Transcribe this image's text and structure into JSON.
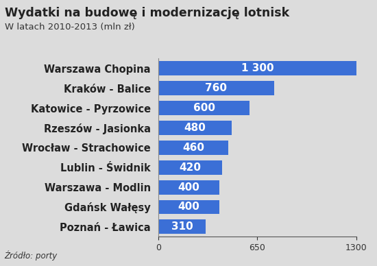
{
  "chart_data": {
    "type": "bar",
    "orientation": "horizontal",
    "title": "Wydatki na budowę i modernizację lotnisk",
    "subtitle": "W latach 2010-2013 (mln zł)",
    "source": "Źródło: porty",
    "categories": [
      "Warszawa Chopina",
      "Kraków - Balice",
      "Katowice - Pyrzowice",
      "Rzeszów - Jasionka",
      "Wrocław - Strachowice",
      "Lublin - Świdnik",
      "Warszawa - Modlin",
      "Gdańsk Wałęsy",
      "Poznań - Ławica"
    ],
    "values": [
      1300,
      760,
      600,
      480,
      460,
      420,
      400,
      400,
      310
    ],
    "value_labels": [
      "1 300",
      "760",
      "600",
      "480",
      "460",
      "420",
      "400",
      "400",
      "310"
    ],
    "data_labels": true,
    "color": "#3b6fd6",
    "xlim": [
      0,
      1300
    ],
    "xticks": [
      0,
      650,
      1300
    ],
    "grid": false
  }
}
